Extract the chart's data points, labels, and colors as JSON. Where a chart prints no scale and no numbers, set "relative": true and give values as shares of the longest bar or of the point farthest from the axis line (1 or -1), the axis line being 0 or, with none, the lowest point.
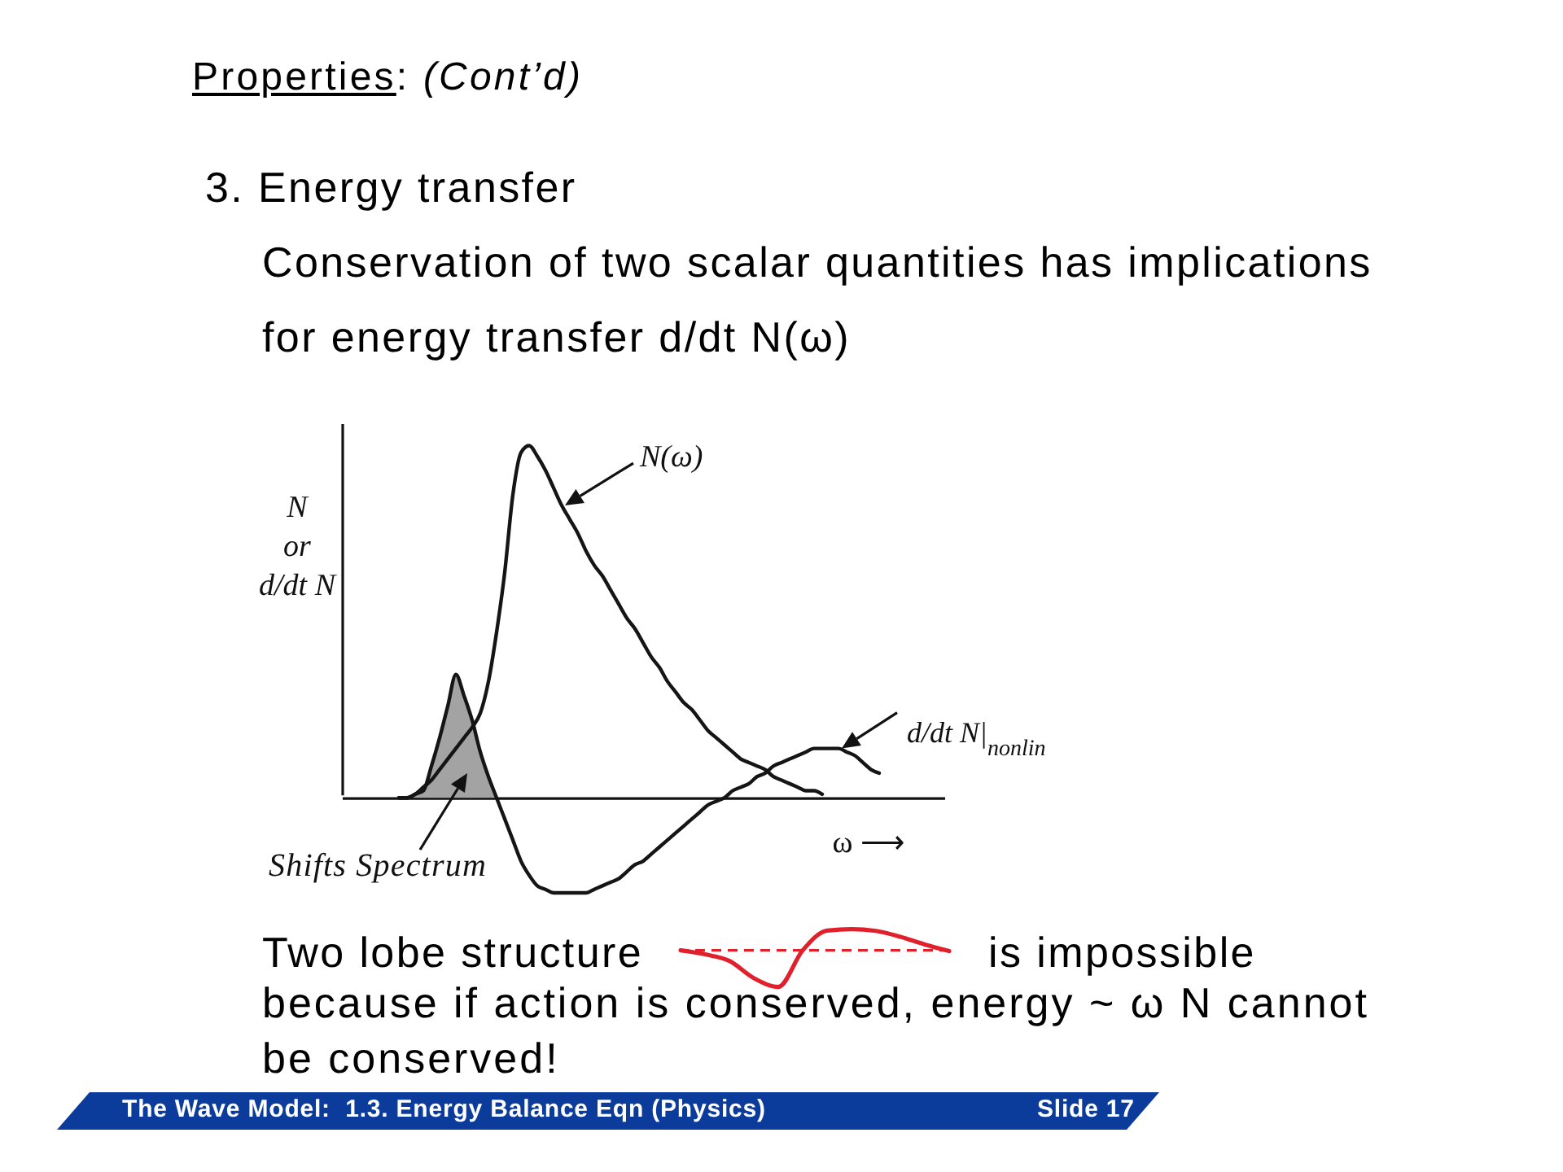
{
  "chart_data": [
    {
      "type": "line",
      "title": "Properties: (Cont’d)",
      "subtitle": "3. Energy transfer\nConservation of two scalar quantities has implications for energy transfer d/dt N(ω)",
      "xlabel": "ω ⟶",
      "ylabel": "N\nor\nd/dt N",
      "relative": true,
      "categories": [
        null,
        null,
        null,
        null,
        null,
        null,
        null,
        null,
        null,
        null,
        null,
        null,
        null,
        null,
        null,
        null,
        null,
        null,
        null,
        null,
        null,
        null,
        null,
        null,
        null,
        null,
        null,
        null,
        null,
        null,
        null,
        null,
        null,
        null,
        null,
        null,
        null,
        null,
        null,
        null,
        null,
        null,
        null,
        null,
        null,
        null,
        null,
        null,
        null,
        null,
        null,
        null,
        null,
        null,
        null,
        null,
        null,
        null,
        null,
        null,
        null,
        null,
        null,
        null,
        null,
        null,
        null,
        null,
        null,
        null,
        null,
        null,
        null,
        null,
        null
      ],
      "series": [
        {
          "type": "area",
          "color": "#a3a3a3",
          "values": [
            null,
            null,
            null,
            null,
            null,
            null,
            null,
            0,
            0,
            0.01,
            0.02,
            0.09,
            0.17,
            0.26,
            0.35,
            0.29,
            0.22,
            0.13,
            0.06,
            0,
            null,
            null,
            null,
            null,
            null,
            null,
            null,
            null,
            null,
            null,
            null,
            null,
            null,
            null,
            null,
            null,
            null,
            null,
            null,
            null,
            null,
            null,
            null,
            null,
            null,
            null,
            null,
            null,
            null,
            null,
            null,
            null,
            null,
            null,
            null,
            null,
            null,
            null,
            null,
            null,
            null,
            null,
            null,
            null,
            null,
            null,
            null,
            null,
            null,
            null,
            null,
            null,
            null,
            null,
            null
          ]
        },
        {
          "name": "N(ω)",
          "color": "#151515",
          "values": [
            null,
            null,
            null,
            null,
            null,
            null,
            null,
            0,
            0,
            0.01,
            0.03,
            0.05,
            0.08,
            0.11,
            0.14,
            0.17,
            0.2,
            0.24,
            0.33,
            0.47,
            0.64,
            0.86,
            0.98,
            1,
            0.97,
            0.93,
            0.88,
            0.83,
            0.79,
            0.75,
            0.7,
            0.66,
            0.63,
            0.59,
            0.55,
            0.51,
            0.48,
            0.44,
            0.4,
            0.37,
            0.33,
            0.3,
            0.27,
            0.25,
            0.22,
            0.19,
            0.17,
            0.15,
            0.13,
            0.11,
            0.1,
            0.09,
            0.08,
            0.06,
            0.05,
            0.04,
            0.03,
            0.02,
            0.02,
            0.01,
            null,
            null,
            null,
            null,
            null,
            null,
            null,
            null,
            null,
            null,
            null,
            null,
            null,
            null,
            null
          ]
        },
        {
          "name": "d/dt N|$_{nonlin}$",
          "color": "#151515",
          "values": [
            null,
            null,
            null,
            null,
            null,
            null,
            null,
            0,
            0,
            0.01,
            0.02,
            0.09,
            0.17,
            0.26,
            0.35,
            0.29,
            0.22,
            0.13,
            0.06,
            0,
            -0.06,
            -0.12,
            -0.18,
            -0.22,
            -0.25,
            -0.26,
            -0.27,
            -0.27,
            -0.27,
            -0.27,
            -0.27,
            -0.26,
            -0.25,
            -0.24,
            -0.23,
            -0.21,
            -0.19,
            -0.18,
            -0.16,
            -0.14,
            -0.12,
            -0.1,
            -0.08,
            -0.06,
            -0.04,
            -0.02,
            -0.01,
            0,
            0.02,
            0.03,
            0.04,
            0.06,
            0.07,
            0.09,
            0.1,
            0.11,
            0.12,
            0.13,
            0.14,
            0.14,
            0.14,
            0.14,
            0.13,
            0.12,
            0.1,
            0.08,
            0.07,
            null,
            null,
            null,
            null,
            null,
            null,
            null,
            null
          ]
        }
      ],
      "annotations": [
        "Shifts Spectrum",
        "Two lobe structure",
        "is impossible",
        "because if action is conserved, energy ~ ω N cannot be conserved!",
        "The Wave Model:  1.3. Energy Balance Eqn (Physics)",
        "Slide 17"
      ]
    },
    {
      "type": "line",
      "relative": true,
      "categories": [
        null,
        null,
        null,
        null,
        null,
        null,
        null,
        null,
        null,
        null,
        null,
        null
      ],
      "series": [
        {
          "color": "#e0202b",
          "values": [
            0,
            -0.11,
            -0.29,
            -0.76,
            -1,
            0,
            0.54,
            0.58,
            0.53,
            0.37,
            0.16,
            -0.02
          ]
        }
      ],
      "ref_lines": [
        {
          "axis": "y",
          "value": 0,
          "color": "#e0202b",
          "line_style": "dashed"
        }
      ]
    }
  ]
}
